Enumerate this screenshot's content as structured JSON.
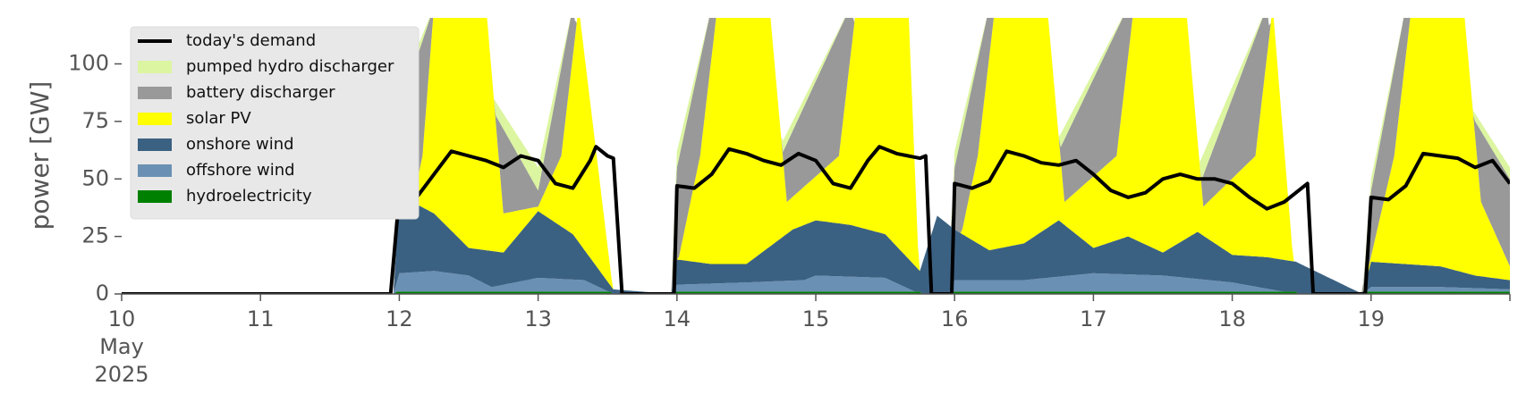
{
  "chart_data": {
    "type": "area",
    "title": "",
    "xlabel": "",
    "ylabel": "power [GW]",
    "ylim": [
      0,
      120
    ],
    "xlim": [
      "2025-05-10T00:00",
      "2025-05-20T00:00"
    ],
    "y_ticks": [
      "0",
      "25",
      "50",
      "75",
      "100"
    ],
    "x_ticks": [
      {
        "date": "2025-05-10",
        "label": "10",
        "sub1": "May",
        "sub2": "2025"
      },
      {
        "date": "2025-05-11",
        "label": "11"
      },
      {
        "date": "2025-05-12",
        "label": "12"
      },
      {
        "date": "2025-05-13",
        "label": "13"
      },
      {
        "date": "2025-05-14",
        "label": "14"
      },
      {
        "date": "2025-05-15",
        "label": "15"
      },
      {
        "date": "2025-05-16",
        "label": "16"
      },
      {
        "date": "2025-05-17",
        "label": "17"
      },
      {
        "date": "2025-05-18",
        "label": "18"
      },
      {
        "date": "2025-05-19",
        "label": "19"
      },
      {
        "date": "2025-05-20",
        "label": ""
      }
    ],
    "legend_position": "top-left",
    "legend": [
      {
        "name": "today's demand",
        "kind": "line",
        "color": "#000000"
      },
      {
        "name": "pumped hydro discharger",
        "kind": "area",
        "color": "#dcf5a0"
      },
      {
        "name": "battery discharger",
        "kind": "area",
        "color": "#999999"
      },
      {
        "name": "solar PV",
        "kind": "area",
        "color": "#ffff00"
      },
      {
        "name": "onshore wind",
        "kind": "area",
        "color": "#3b6182"
      },
      {
        "name": "offshore wind",
        "kind": "area",
        "color": "#6a90b4"
      },
      {
        "name": "hydroelectricity",
        "kind": "area",
        "color": "#008000"
      }
    ],
    "stack_order": [
      "hydroelectricity",
      "offshore wind",
      "onshore wind",
      "solar PV",
      "battery discharger",
      "pumped hydro discharger"
    ],
    "series": [
      {
        "name": "hydroelectricity",
        "points": [
          [
            "2025-05-10T00:00",
            0
          ],
          [
            "2025-05-11T23:00",
            0
          ],
          [
            "2025-05-11T23:30",
            1
          ],
          [
            "2025-05-13T12:30",
            1
          ],
          [
            "2025-05-13T13:00",
            0
          ],
          [
            "2025-05-13T23:00",
            0
          ],
          [
            "2025-05-13T23:30",
            1
          ],
          [
            "2025-05-15T18:00",
            1
          ],
          [
            "2025-05-15T18:30",
            0
          ],
          [
            "2025-05-15T23:00",
            0
          ],
          [
            "2025-05-15T23:30",
            1
          ],
          [
            "2025-05-18T11:00",
            1
          ],
          [
            "2025-05-18T11:30",
            0
          ],
          [
            "2025-05-18T22:30",
            0
          ],
          [
            "2025-05-18T23:00",
            1
          ],
          [
            "2025-05-20T00:00",
            1
          ]
        ]
      },
      {
        "name": "offshore wind",
        "points": [
          [
            "2025-05-10T00:00",
            0
          ],
          [
            "2025-05-11T23:00",
            0
          ],
          [
            "2025-05-12T00:00",
            9
          ],
          [
            "2025-05-12T06:00",
            10
          ],
          [
            "2025-05-12T12:00",
            8
          ],
          [
            "2025-05-12T16:00",
            3
          ],
          [
            "2025-05-13T00:00",
            7
          ],
          [
            "2025-05-13T08:00",
            6
          ],
          [
            "2025-05-13T13:00",
            0
          ],
          [
            "2025-05-13T23:00",
            0
          ],
          [
            "2025-05-14T00:00",
            4
          ],
          [
            "2025-05-14T12:00",
            5
          ],
          [
            "2025-05-14T22:00",
            6
          ],
          [
            "2025-05-15T00:00",
            8
          ],
          [
            "2025-05-15T12:00",
            7
          ],
          [
            "2025-05-15T18:00",
            0
          ],
          [
            "2025-05-15T23:00",
            0
          ],
          [
            "2025-05-16T00:00",
            6
          ],
          [
            "2025-05-16T12:00",
            6
          ],
          [
            "2025-05-17T00:00",
            9
          ],
          [
            "2025-05-17T12:00",
            8
          ],
          [
            "2025-05-18T00:00",
            5
          ],
          [
            "2025-05-18T11:00",
            0
          ],
          [
            "2025-05-18T22:30",
            0
          ],
          [
            "2025-05-19T00:00",
            3
          ],
          [
            "2025-05-19T12:00",
            3
          ],
          [
            "2025-05-20T00:00",
            2
          ]
        ]
      },
      {
        "name": "onshore wind",
        "points": [
          [
            "2025-05-10T00:00",
            0
          ],
          [
            "2025-05-11T23:00",
            0
          ],
          [
            "2025-05-12T00:00",
            43
          ],
          [
            "2025-05-12T06:00",
            35
          ],
          [
            "2025-05-12T12:00",
            20
          ],
          [
            "2025-05-12T18:00",
            18
          ],
          [
            "2025-05-13T00:00",
            36
          ],
          [
            "2025-05-13T06:00",
            26
          ],
          [
            "2025-05-13T13:00",
            2
          ],
          [
            "2025-05-13T23:00",
            0
          ],
          [
            "2025-05-14T00:00",
            15
          ],
          [
            "2025-05-14T06:00",
            13
          ],
          [
            "2025-05-14T12:00",
            13
          ],
          [
            "2025-05-14T20:00",
            28
          ],
          [
            "2025-05-15T00:00",
            32
          ],
          [
            "2025-05-15T06:00",
            30
          ],
          [
            "2025-05-15T12:00",
            26
          ],
          [
            "2025-05-15T18:00",
            10
          ],
          [
            "2025-05-15T21:00",
            34
          ],
          [
            "2025-05-16T00:00",
            28
          ],
          [
            "2025-05-16T06:00",
            19
          ],
          [
            "2025-05-16T12:00",
            22
          ],
          [
            "2025-05-16T18:00",
            32
          ],
          [
            "2025-05-17T00:00",
            20
          ],
          [
            "2025-05-17T06:00",
            25
          ],
          [
            "2025-05-17T12:00",
            18
          ],
          [
            "2025-05-17T18:00",
            27
          ],
          [
            "2025-05-18T00:00",
            17
          ],
          [
            "2025-05-18T06:00",
            16
          ],
          [
            "2025-05-18T11:00",
            14
          ],
          [
            "2025-05-18T22:30",
            0
          ],
          [
            "2025-05-19T00:00",
            14
          ],
          [
            "2025-05-19T06:00",
            13
          ],
          [
            "2025-05-19T12:00",
            12
          ],
          [
            "2025-05-19T18:00",
            8
          ],
          [
            "2025-05-20T00:00",
            6
          ]
        ]
      },
      {
        "name": "solar PV",
        "points": [
          [
            "2025-05-10T00:00",
            0
          ],
          [
            "2025-05-11T23:00",
            0
          ],
          [
            "2025-05-12T04:00",
            60
          ],
          [
            "2025-05-12T06:00",
            125
          ],
          [
            "2025-05-12T15:00",
            125
          ],
          [
            "2025-05-12T18:00",
            35
          ],
          [
            "2025-05-13T00:00",
            38
          ],
          [
            "2025-05-13T04:00",
            60
          ],
          [
            "2025-05-13T07:00",
            125
          ],
          [
            "2025-05-13T13:00",
            0
          ],
          [
            "2025-05-13T23:00",
            0
          ],
          [
            "2025-05-14T04:00",
            60
          ],
          [
            "2025-05-14T07:00",
            125
          ],
          [
            "2025-05-14T16:00",
            125
          ],
          [
            "2025-05-14T19:00",
            40
          ],
          [
            "2025-05-15T04:00",
            60
          ],
          [
            "2025-05-15T07:00",
            125
          ],
          [
            "2025-05-15T16:00",
            125
          ],
          [
            "2025-05-15T18:00",
            0
          ],
          [
            "2025-05-15T23:00",
            0
          ],
          [
            "2025-05-16T04:00",
            60
          ],
          [
            "2025-05-16T07:00",
            125
          ],
          [
            "2025-05-16T16:00",
            125
          ],
          [
            "2025-05-16T19:00",
            40
          ],
          [
            "2025-05-17T04:00",
            60
          ],
          [
            "2025-05-17T07:00",
            125
          ],
          [
            "2025-05-17T16:00",
            125
          ],
          [
            "2025-05-17T19:00",
            38
          ],
          [
            "2025-05-18T04:00",
            60
          ],
          [
            "2025-05-18T07:00",
            125
          ],
          [
            "2025-05-18T11:00",
            0
          ],
          [
            "2025-05-18T22:30",
            0
          ],
          [
            "2025-05-19T04:00",
            60
          ],
          [
            "2025-05-19T07:00",
            125
          ],
          [
            "2025-05-19T16:00",
            125
          ],
          [
            "2025-05-19T19:00",
            40
          ],
          [
            "2025-05-20T00:00",
            12
          ]
        ]
      },
      {
        "name": "battery discharger",
        "points": [
          [
            "2025-05-10T00:00",
            0
          ],
          [
            "2025-05-11T23:00",
            0
          ],
          [
            "2025-05-12T00:00",
            80
          ],
          [
            "2025-05-12T06:00",
            125
          ],
          [
            "2025-05-13T00:00",
            45
          ],
          [
            "2025-05-13T06:00",
            125
          ],
          [
            "2025-05-13T13:00",
            0
          ],
          [
            "2025-05-13T23:00",
            0
          ],
          [
            "2025-05-14T00:00",
            55
          ],
          [
            "2025-05-14T06:00",
            125
          ],
          [
            "2025-05-14T18:00",
            60
          ],
          [
            "2025-05-15T06:00",
            125
          ],
          [
            "2025-05-15T18:00",
            0
          ],
          [
            "2025-05-15T23:00",
            0
          ],
          [
            "2025-05-16T00:00",
            55
          ],
          [
            "2025-05-16T06:00",
            125
          ],
          [
            "2025-05-16T18:00",
            62
          ],
          [
            "2025-05-17T06:00",
            125
          ],
          [
            "2025-05-17T18:00",
            45
          ],
          [
            "2025-05-18T06:00",
            125
          ],
          [
            "2025-05-18T11:00",
            0
          ],
          [
            "2025-05-18T22:30",
            0
          ],
          [
            "2025-05-19T00:00",
            45
          ],
          [
            "2025-05-19T06:00",
            125
          ],
          [
            "2025-05-20T00:00",
            50
          ]
        ]
      },
      {
        "name": "pumped hydro discharger",
        "points": [
          [
            "2025-05-10T00:00",
            0
          ],
          [
            "2025-05-11T23:00",
            0
          ],
          [
            "2025-05-12T00:00",
            88
          ],
          [
            "2025-05-12T06:00",
            125
          ],
          [
            "2025-05-13T00:00",
            55
          ],
          [
            "2025-05-13T06:00",
            125
          ],
          [
            "2025-05-13T13:00",
            0
          ],
          [
            "2025-05-13T23:00",
            0
          ],
          [
            "2025-05-14T00:00",
            62
          ],
          [
            "2025-05-14T06:00",
            125
          ],
          [
            "2025-05-14T18:00",
            65
          ],
          [
            "2025-05-15T06:00",
            125
          ],
          [
            "2025-05-15T18:00",
            0
          ],
          [
            "2025-05-15T23:00",
            0
          ],
          [
            "2025-05-16T00:00",
            62
          ],
          [
            "2025-05-16T06:00",
            125
          ],
          [
            "2025-05-16T18:00",
            68
          ],
          [
            "2025-05-17T06:00",
            125
          ],
          [
            "2025-05-17T18:00",
            55
          ],
          [
            "2025-05-18T06:00",
            125
          ],
          [
            "2025-05-18T11:00",
            0
          ],
          [
            "2025-05-18T22:30",
            0
          ],
          [
            "2025-05-19T00:00",
            50
          ],
          [
            "2025-05-19T06:00",
            125
          ],
          [
            "2025-05-20T00:00",
            55
          ]
        ]
      },
      {
        "name": "today's demand",
        "points": [
          [
            "2025-05-10T00:00",
            0
          ],
          [
            "2025-05-11T22:30",
            0
          ],
          [
            "2025-05-12T00:00",
            43
          ],
          [
            "2025-05-12T03:00",
            42
          ],
          [
            "2025-05-12T06:00",
            52
          ],
          [
            "2025-05-12T09:00",
            62
          ],
          [
            "2025-05-12T12:00",
            60
          ],
          [
            "2025-05-12T15:00",
            58
          ],
          [
            "2025-05-12T18:00",
            55
          ],
          [
            "2025-05-12T21:00",
            60
          ],
          [
            "2025-05-13T00:00",
            58
          ],
          [
            "2025-05-13T03:00",
            48
          ],
          [
            "2025-05-13T06:00",
            46
          ],
          [
            "2025-05-13T09:00",
            58
          ],
          [
            "2025-05-13T10:00",
            64
          ],
          [
            "2025-05-13T12:00",
            60
          ],
          [
            "2025-05-13T13:00",
            59
          ],
          [
            "2025-05-13T14:30",
            0
          ],
          [
            "2025-05-13T23:30",
            0
          ],
          [
            "2025-05-14T00:00",
            47
          ],
          [
            "2025-05-14T03:00",
            46
          ],
          [
            "2025-05-14T06:00",
            52
          ],
          [
            "2025-05-14T09:00",
            63
          ],
          [
            "2025-05-14T12:00",
            61
          ],
          [
            "2025-05-14T15:00",
            58
          ],
          [
            "2025-05-14T18:00",
            56
          ],
          [
            "2025-05-14T21:00",
            61
          ],
          [
            "2025-05-15T00:00",
            58
          ],
          [
            "2025-05-15T03:00",
            48
          ],
          [
            "2025-05-15T06:00",
            46
          ],
          [
            "2025-05-15T09:00",
            58
          ],
          [
            "2025-05-15T11:00",
            64
          ],
          [
            "2025-05-15T14:00",
            61
          ],
          [
            "2025-05-15T18:00",
            59
          ],
          [
            "2025-05-15T19:00",
            60
          ],
          [
            "2025-05-15T20:00",
            0
          ],
          [
            "2025-05-15T23:30",
            0
          ],
          [
            "2025-05-16T00:00",
            48
          ],
          [
            "2025-05-16T03:00",
            46
          ],
          [
            "2025-05-16T06:00",
            49
          ],
          [
            "2025-05-16T09:00",
            62
          ],
          [
            "2025-05-16T12:00",
            60
          ],
          [
            "2025-05-16T15:00",
            57
          ],
          [
            "2025-05-16T18:00",
            56
          ],
          [
            "2025-05-16T21:00",
            58
          ],
          [
            "2025-05-17T00:00",
            52
          ],
          [
            "2025-05-17T03:00",
            45
          ],
          [
            "2025-05-17T06:00",
            42
          ],
          [
            "2025-05-17T09:00",
            44
          ],
          [
            "2025-05-17T12:00",
            50
          ],
          [
            "2025-05-17T15:00",
            52
          ],
          [
            "2025-05-17T18:00",
            50
          ],
          [
            "2025-05-17T21:00",
            50
          ],
          [
            "2025-05-18T00:00",
            48
          ],
          [
            "2025-05-18T03:00",
            42
          ],
          [
            "2025-05-18T06:00",
            37
          ],
          [
            "2025-05-18T09:00",
            40
          ],
          [
            "2025-05-18T12:00",
            46
          ],
          [
            "2025-05-18T13:00",
            48
          ],
          [
            "2025-05-18T14:00",
            0
          ],
          [
            "2025-05-18T23:00",
            0
          ],
          [
            "2025-05-19T00:00",
            42
          ],
          [
            "2025-05-19T03:00",
            41
          ],
          [
            "2025-05-19T06:00",
            47
          ],
          [
            "2025-05-19T09:00",
            61
          ],
          [
            "2025-05-19T12:00",
            60
          ],
          [
            "2025-05-19T15:00",
            59
          ],
          [
            "2025-05-19T18:00",
            55
          ],
          [
            "2025-05-19T21:00",
            58
          ],
          [
            "2025-05-20T00:00",
            48
          ]
        ]
      }
    ]
  }
}
